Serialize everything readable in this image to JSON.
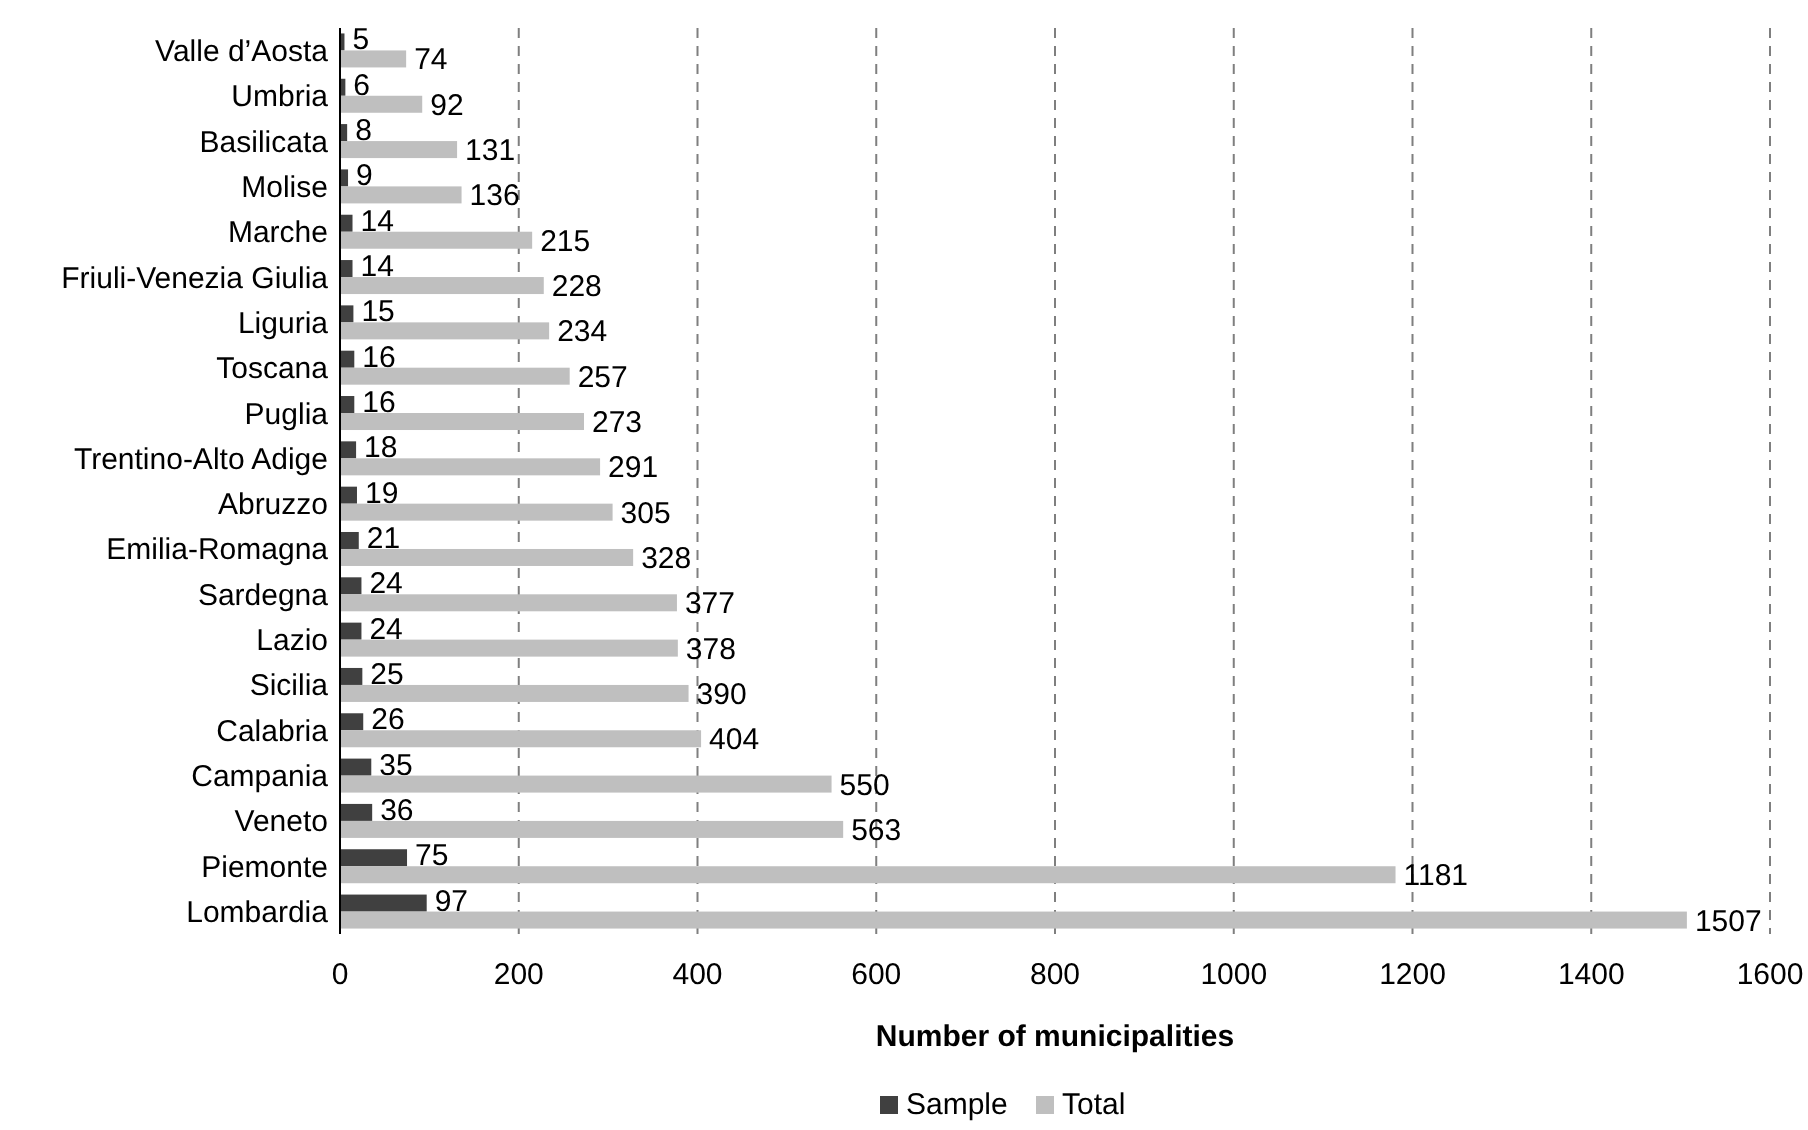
{
  "chart_data": {
    "type": "bar",
    "orientation": "horizontal",
    "xlabel": "Number of municipalities",
    "categories": [
      "Valle d’Aosta",
      "Umbria",
      "Basilicata",
      "Molise",
      "Marche",
      "Friuli-Venezia Giulia",
      "Liguria",
      "Toscana",
      "Puglia",
      "Trentino-Alto Adige",
      "Abruzzo",
      "Emilia-Romagna",
      "Sardegna",
      "Lazio",
      "Sicilia",
      "Calabria",
      "Campania",
      "Veneto",
      "Piemonte",
      "Lombardia"
    ],
    "series": [
      {
        "name": "Sample",
        "color": "#404040",
        "values": [
          5,
          6,
          8,
          9,
          14,
          14,
          15,
          16,
          16,
          18,
          19,
          21,
          24,
          24,
          25,
          26,
          35,
          36,
          75,
          97
        ]
      },
      {
        "name": "Total",
        "color": "#bfbfbf",
        "values": [
          74,
          92,
          131,
          136,
          215,
          228,
          234,
          257,
          273,
          291,
          305,
          328,
          377,
          378,
          390,
          404,
          550,
          563,
          1181,
          1507
        ]
      }
    ],
    "xlim": [
      0,
      1600
    ],
    "xticks": [
      0,
      200,
      400,
      600,
      800,
      1000,
      1200,
      1400,
      1600
    ],
    "grid": "x",
    "legend": "bottom",
    "data_labels": true
  }
}
